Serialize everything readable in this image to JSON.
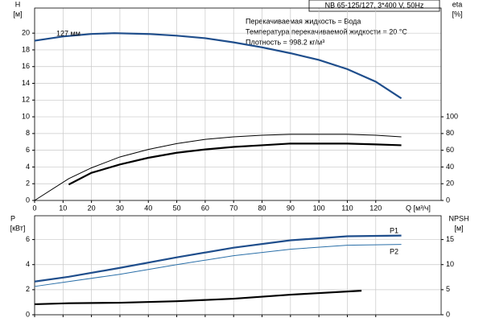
{
  "chart_data": [
    {
      "type": "line",
      "title": "NB 65-125/127, 3*400 V, 50Hz",
      "annotations": [
        "Перекачиваемая жидкость = Вода",
        "Температура перекачиваемой жидкости = 20 °C",
        "Плотность = 998.2 кг/м³"
      ],
      "y_label": "H",
      "y_unit": "[м]",
      "y2_label": "eta",
      "y2_unit": "[%]",
      "x_label": "Q [м³/ч]",
      "xlim": [
        0,
        143
      ],
      "xticks": [
        0,
        10,
        20,
        30,
        40,
        50,
        60,
        70,
        80,
        90,
        100,
        110,
        120
      ],
      "ylim": [
        0,
        23
      ],
      "yticks": [
        0,
        2,
        4,
        6,
        8,
        10,
        12,
        14,
        16,
        18,
        20
      ],
      "y2lim": [
        0,
        230
      ],
      "y2ticks": [
        0,
        20,
        40,
        60,
        80,
        100
      ],
      "grid": true,
      "series": [
        {
          "name": "127 мм",
          "color": "#1f4e8c",
          "line_width": "thick",
          "x": [
            0,
            10,
            20,
            28,
            40,
            50,
            60,
            70,
            80,
            90,
            100,
            110,
            120,
            129
          ],
          "values": [
            19.1,
            19.6,
            19.9,
            20.0,
            19.9,
            19.7,
            19.4,
            18.9,
            18.3,
            17.6,
            16.8,
            15.7,
            14.2,
            12.2
          ]
        },
        {
          "color": "#000000",
          "axis": "y2",
          "line_width": "thin",
          "x": [
            0,
            12,
            20,
            30,
            40,
            50,
            60,
            70,
            80,
            90,
            100,
            110,
            120,
            129
          ],
          "values": [
            0,
            26,
            39,
            52,
            61,
            68,
            73,
            76,
            78,
            79,
            79,
            79,
            78,
            76
          ]
        },
        {
          "color": "#000000",
          "axis": "y2",
          "line_width": "thick",
          "x": [
            12,
            20,
            30,
            40,
            50,
            60,
            70,
            80,
            90,
            100,
            110,
            120,
            129
          ],
          "values": [
            19,
            33,
            43,
            51,
            57,
            61,
            64,
            66,
            68,
            68,
            68,
            67,
            66
          ]
        }
      ]
    },
    {
      "type": "line",
      "y_label": "P",
      "y_unit": "[кВт]",
      "y2_label": "NPSH",
      "y2_unit": "[м]",
      "xlim": [
        0,
        143
      ],
      "xticks": [
        0,
        10,
        20,
        30,
        40,
        50,
        60,
        70,
        80,
        90,
        100,
        110,
        120
      ],
      "ylim": [
        0,
        7.9
      ],
      "yticks": [
        0,
        2,
        4,
        6
      ],
      "y2lim": [
        0,
        19.75
      ],
      "y2ticks": [
        0,
        5,
        10,
        15
      ],
      "grid": true,
      "series": [
        {
          "name": "P1",
          "color": "#1f4e8c",
          "line_width": "thick",
          "x": [
            0,
            12,
            30,
            50,
            70,
            90,
            110,
            129
          ],
          "values": [
            2.65,
            3.03,
            3.74,
            4.58,
            5.35,
            5.94,
            6.26,
            6.32
          ]
        },
        {
          "name": "P2",
          "color": "#2a6fa8",
          "line_width": "thin",
          "x": [
            0,
            12,
            30,
            50,
            70,
            90,
            110,
            129
          ],
          "values": [
            2.26,
            2.65,
            3.23,
            4.0,
            4.71,
            5.23,
            5.55,
            5.61
          ]
        },
        {
          "color": "#000000",
          "axis": "y2",
          "line_width": "thick",
          "x": [
            0,
            12,
            30,
            50,
            70,
            90,
            115
          ],
          "values": [
            2.1,
            2.3,
            2.4,
            2.7,
            3.2,
            4.0,
            4.8
          ]
        }
      ]
    }
  ]
}
